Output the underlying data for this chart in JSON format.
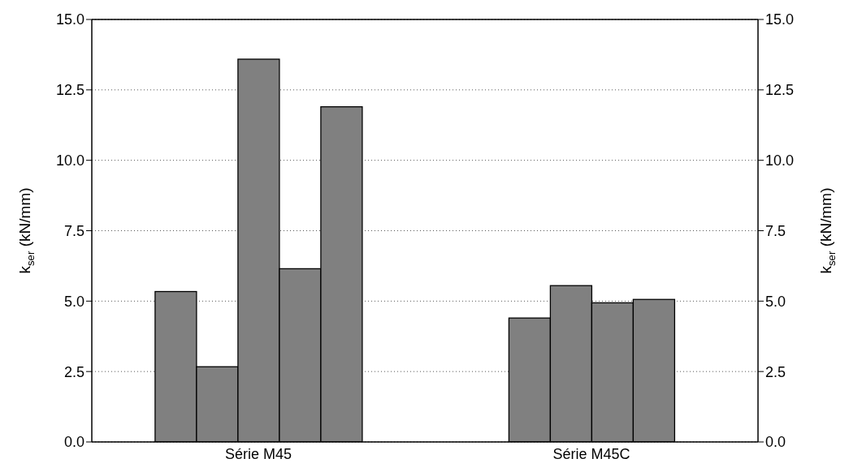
{
  "chart_data": {
    "type": "bar",
    "categories": [
      "Série M45",
      "Série M45C"
    ],
    "series": [
      {
        "color": "#808080",
        "values": [
          5.34,
          4.4
        ]
      },
      {
        "color": "#808080",
        "values": [
          2.67,
          5.55
        ]
      },
      {
        "color": "#808080",
        "values": [
          13.59,
          4.94
        ]
      },
      {
        "color": "#808080",
        "values": [
          6.15,
          5.06
        ]
      },
      {
        "color": "#808080",
        "values": [
          11.9,
          null
        ]
      }
    ],
    "ylabel": "k$_{ser}$ (kN/mm)",
    "y2label": "k$_{ser}$ (kN/mm)",
    "ylim": [
      0,
      15
    ],
    "yticks": [
      {
        "value": 0,
        "label": "0.0"
      },
      {
        "value": 2.5,
        "label": "2.5"
      },
      {
        "value": 5,
        "label": "5.0"
      },
      {
        "value": 7.5,
        "label": "7.5"
      },
      {
        "value": 10,
        "label": "10.0"
      },
      {
        "value": 12.5,
        "label": "12.5"
      },
      {
        "value": 15,
        "label": "15.0"
      }
    ],
    "y2lim": [
      0,
      15
    ],
    "y2ticks": [
      {
        "value": 0,
        "label": "0.0"
      },
      {
        "value": 2.5,
        "label": "2.5"
      },
      {
        "value": 5,
        "label": "5.0"
      },
      {
        "value": 7.5,
        "label": "7.5"
      },
      {
        "value": 10,
        "label": "10.0"
      },
      {
        "value": 12.5,
        "label": "12.5"
      },
      {
        "value": 15,
        "label": "15.0"
      }
    ],
    "grid": "y",
    "legend": false
  }
}
